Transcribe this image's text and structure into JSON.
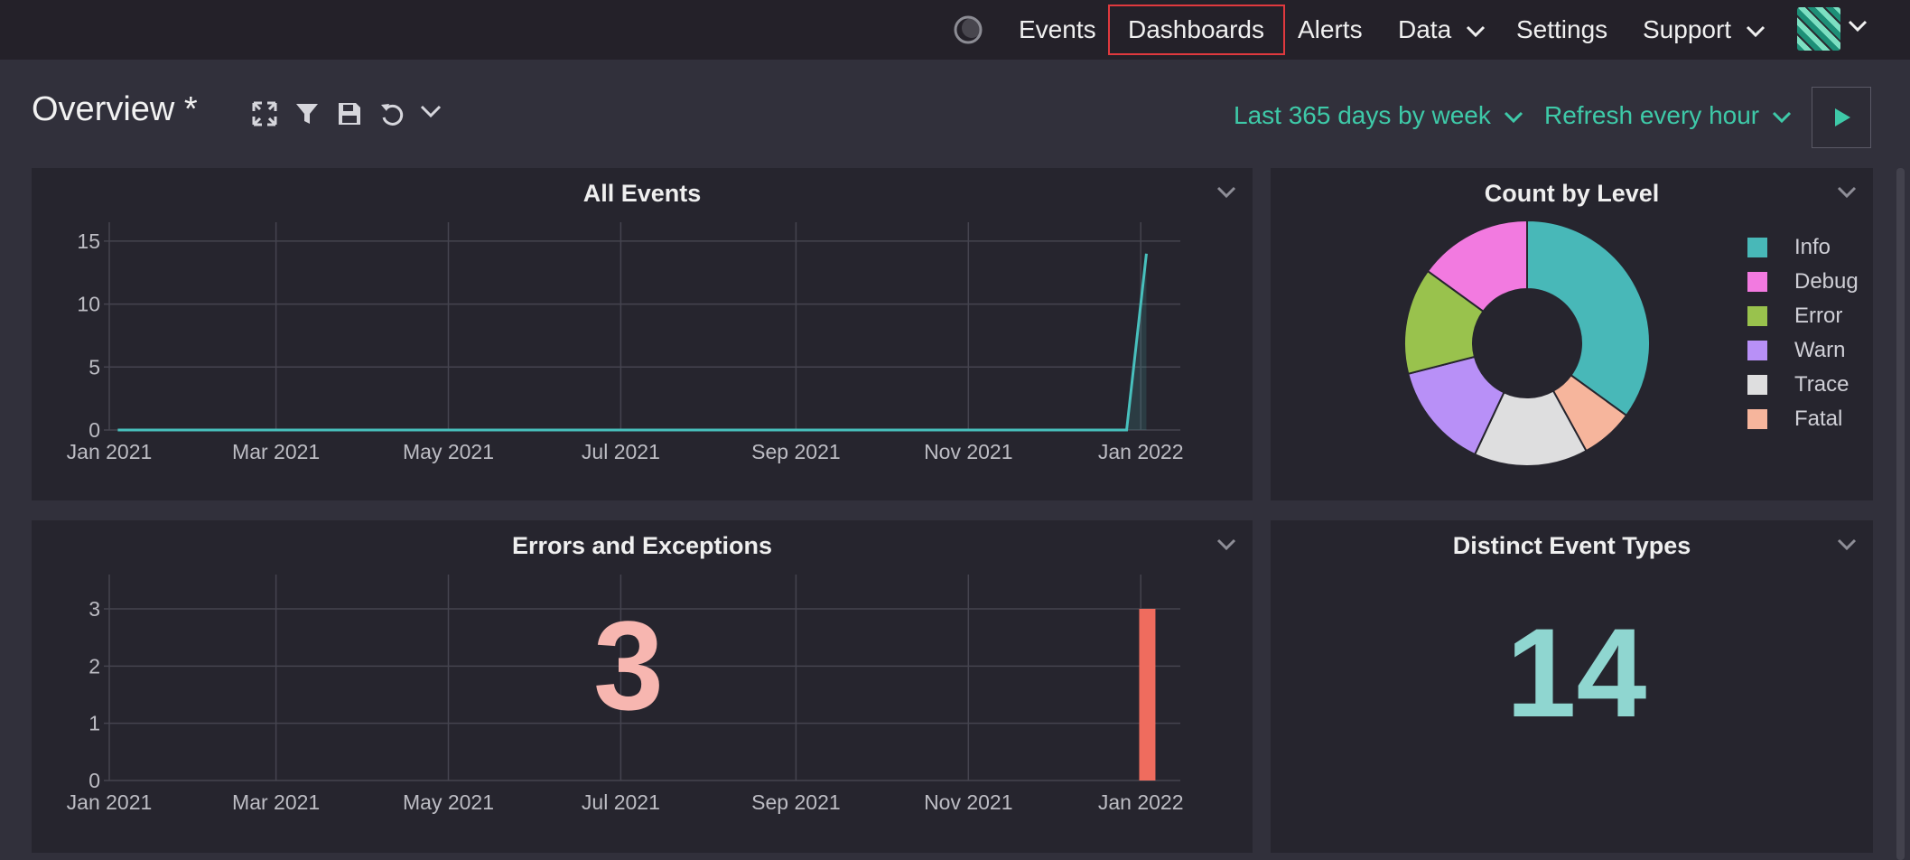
{
  "nav": {
    "theme_icon": "moon-icon",
    "items": [
      {
        "label": "Events"
      },
      {
        "label": "Dashboards"
      },
      {
        "label": "Alerts"
      },
      {
        "label": "Data"
      },
      {
        "label": "Settings"
      },
      {
        "label": "Support"
      }
    ],
    "active": "Dashboards",
    "avatar_icon": "user-avatar"
  },
  "header": {
    "title": "Overview *",
    "tools": [
      "expand-icon",
      "filter-icon",
      "save-icon",
      "undo-icon",
      "chevron-down-icon"
    ],
    "range_label": "Last 365 days by week",
    "refresh_label": "Refresh every hour",
    "run_icon": "play-icon"
  },
  "colors": {
    "accent": "#3ec9a8",
    "line": "#48c0bd",
    "bar": "#ef6c5e",
    "errors_number": "#f7b6b0",
    "distinct_number": "#8fd6d0"
  },
  "panels": {
    "all_events": {
      "title": "All Events"
    },
    "count_by_level": {
      "title": "Count by Level"
    },
    "errors": {
      "title": "Errors and Exceptions",
      "value": "3"
    },
    "distinct": {
      "title": "Distinct Event Types",
      "value": "14"
    }
  },
  "chart_data": [
    {
      "type": "line",
      "title": "All Events",
      "x_ticks": [
        "Jan 2021",
        "Mar 2021",
        "May 2021",
        "Jul 2021",
        "Sep 2021",
        "Nov 2021",
        "Jan 2022"
      ],
      "y_ticks": [
        0,
        5,
        10,
        15
      ],
      "ylim": [
        0,
        16.5
      ],
      "xlim": [
        "2021-01-01",
        "2022-01-15"
      ],
      "series": [
        {
          "x": [
            "2021-01-04",
            "2021-12-27",
            "2022-01-03"
          ],
          "values": [
            0,
            0,
            14
          ]
        }
      ],
      "grid": true
    },
    {
      "type": "pie",
      "title": "Count by Level",
      "legend_position": "right",
      "slices": [
        {
          "label": "Info",
          "value": 35,
          "color": "#48b8b8"
        },
        {
          "label": "Fatal",
          "value": 7,
          "color": "#f6b59c"
        },
        {
          "label": "Trace",
          "value": 15,
          "color": "#dededf"
        },
        {
          "label": "Warn",
          "value": 14,
          "color": "#b890f7"
        },
        {
          "label": "Error",
          "value": 14,
          "color": "#99c24d"
        },
        {
          "label": "Debug",
          "value": 15,
          "color": "#f27ae0"
        }
      ],
      "legend": [
        {
          "label": "Info",
          "color": "#48b8b8"
        },
        {
          "label": "Debug",
          "color": "#f27ae0"
        },
        {
          "label": "Error",
          "color": "#99c24d"
        },
        {
          "label": "Warn",
          "color": "#b890f7"
        },
        {
          "label": "Trace",
          "color": "#dededf"
        },
        {
          "label": "Fatal",
          "color": "#f6b59c"
        }
      ]
    },
    {
      "type": "bar",
      "title": "Errors and Exceptions",
      "x_ticks": [
        "Jan 2021",
        "Mar 2021",
        "May 2021",
        "Jul 2021",
        "Sep 2021",
        "Nov 2021",
        "Jan 2022"
      ],
      "y_ticks": [
        0,
        1,
        2,
        3
      ],
      "ylim": [
        0,
        3.6
      ],
      "xlim": [
        "2021-01-01",
        "2022-01-15"
      ],
      "bars": [
        {
          "x": "2022-01-03",
          "value": 3
        }
      ],
      "grid": true
    }
  ]
}
